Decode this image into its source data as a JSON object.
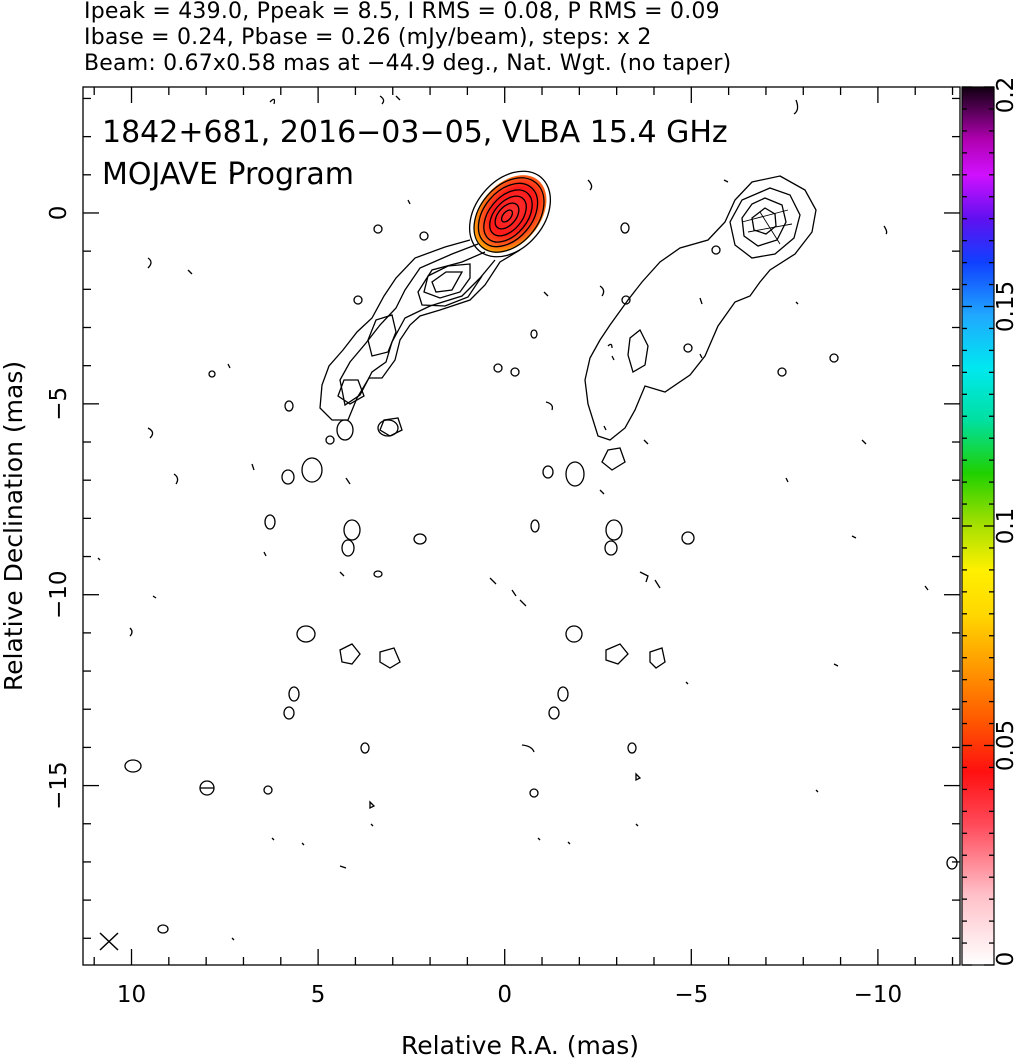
{
  "header": {
    "line1": "Ipeak = 439.0, Ppeak = 8.5, I RMS = 0.08, P RMS = 0.09",
    "line2": "Ibase = 0.24, Pbase = 0.26 (mJy/beam), steps: x 2",
    "line3": "Beam: 0.67x0.58 mas at −44.9 deg., Nat. Wgt. (no taper)"
  },
  "chart_data": {
    "type": "contour",
    "title": "1842+681, 2016−03−05, VLBA 15.4 GHz",
    "subtitle": "MOJAVE Program",
    "xlabel": "Relative R.A. (mas)",
    "ylabel": "Relative Declination (mas)",
    "xlim": [
      11.3,
      -12.2
    ],
    "ylim": [
      -19.7,
      3.3
    ],
    "xticks": [
      10,
      5,
      0,
      -5,
      -10
    ],
    "xtick_labels": [
      "10",
      "5",
      "0",
      "−5",
      "−10"
    ],
    "yticks": [
      0,
      -5,
      -10,
      -15
    ],
    "ytick_labels": [
      "0",
      "−5",
      "−10",
      "−15"
    ],
    "colorbar": {
      "range": [
        0,
        0.2
      ],
      "ticks": [
        0,
        0.05,
        0.1,
        0.15,
        0.2
      ],
      "tick_labels": [
        "0",
        "0.05",
        "0.1",
        "0.15",
        "0.2"
      ]
    },
    "series": [
      {
        "panel": "total intensity",
        "core_center": [
          0,
          0
        ],
        "contour_base_mJy_per_beam": 0.24,
        "contour_step_factor": 2,
        "jet_direction": "south-east",
        "knot_center": [
          2.3,
          -1.9
        ],
        "polarization_patch_center": [
          0,
          0
        ]
      },
      {
        "panel": "polarized intensity",
        "offset_ra": -6.8,
        "contour_base_mJy_per_beam": 0.26,
        "contour_step_factor": 2
      }
    ],
    "beam": {
      "major_mas": 0.67,
      "minor_mas": 0.58,
      "pa_deg": -44.9
    }
  }
}
